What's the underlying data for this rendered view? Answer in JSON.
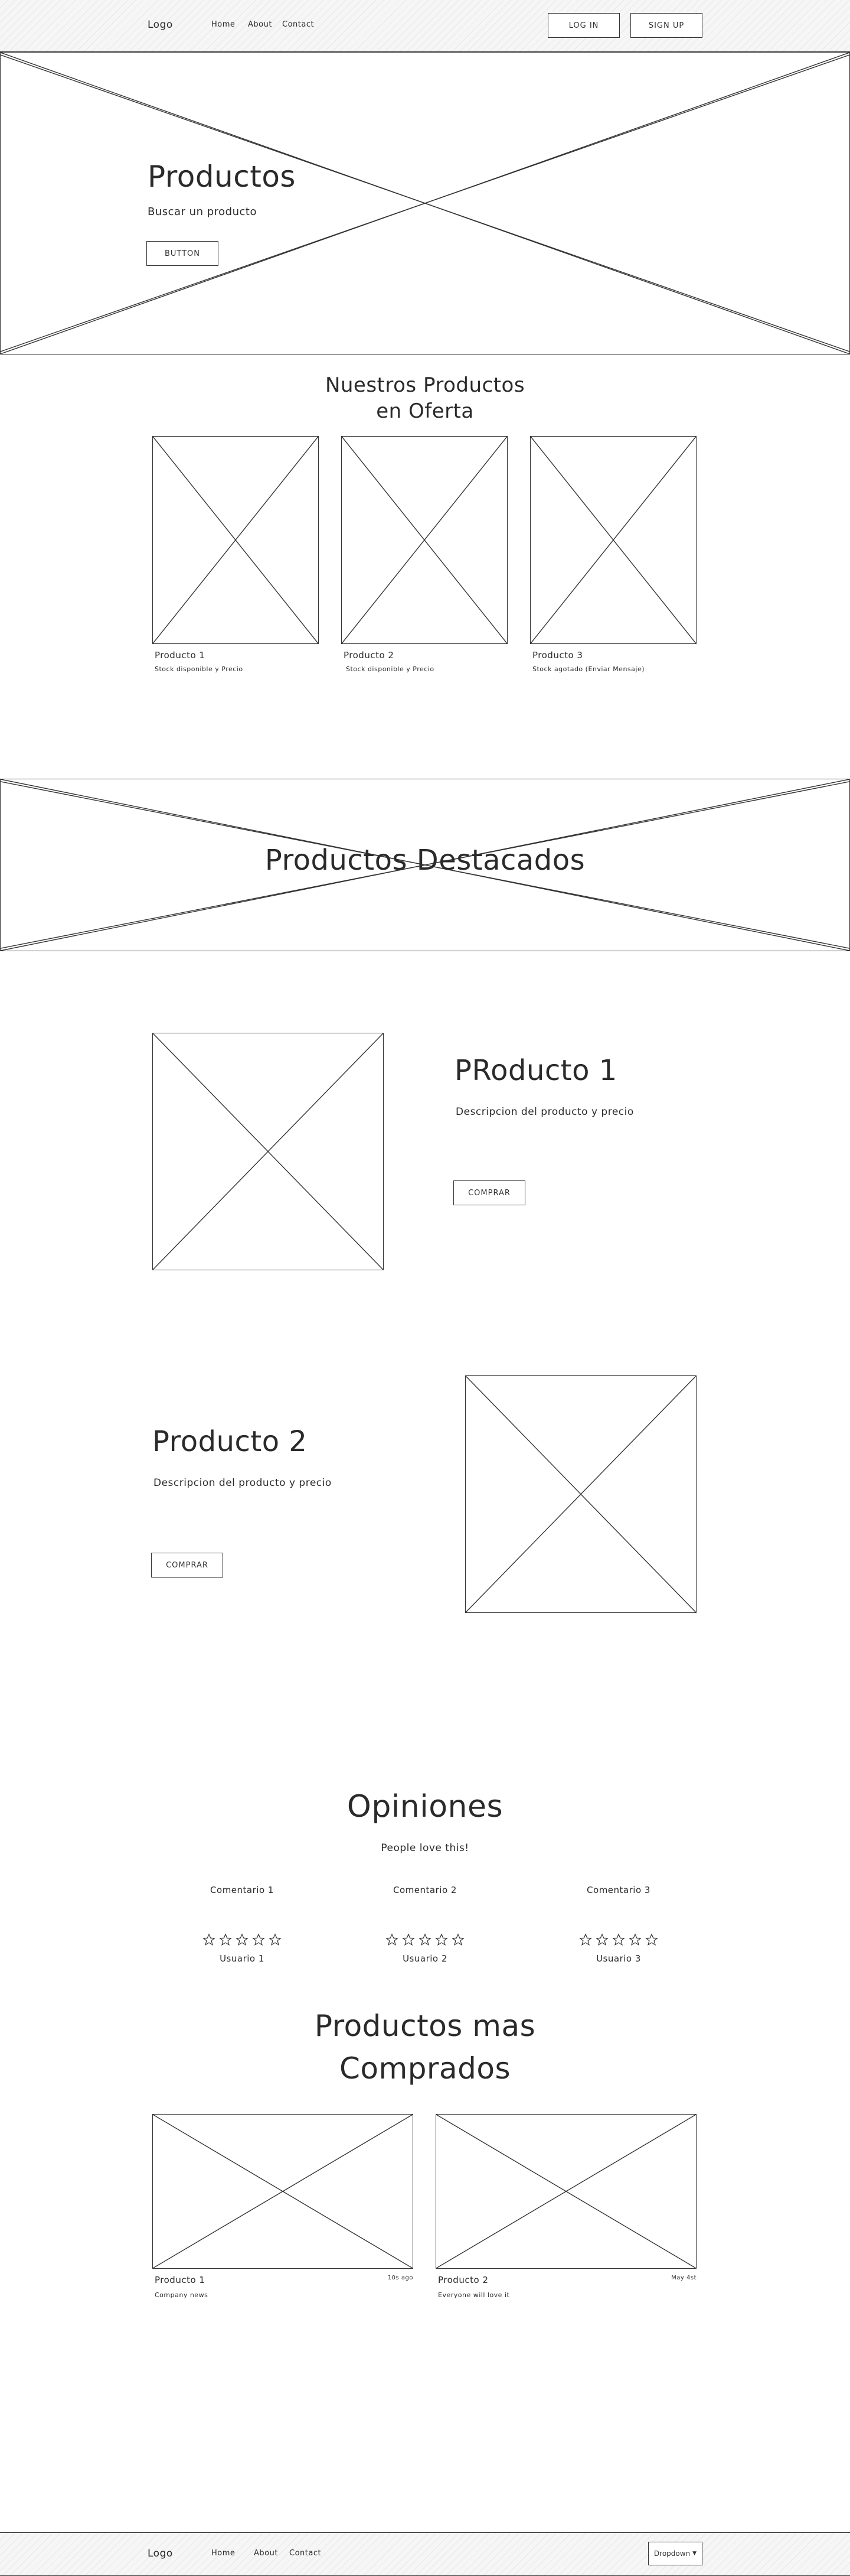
{
  "header": {
    "logo": "Logo",
    "nav": [
      "Home",
      "About",
      "Contact"
    ],
    "login_label": "LOG IN",
    "signup_label": "SIGN UP"
  },
  "hero": {
    "title": "Productos",
    "subtitle": "Buscar un producto",
    "button_label": "BUTTON"
  },
  "offers": {
    "title_line1": "Nuestros Productos",
    "title_line2": "en Oferta",
    "items": [
      {
        "name": "Producto 1",
        "desc": "Stock disponible y Precio"
      },
      {
        "name": "Producto 2",
        "desc": "Stock disponible y Precio"
      },
      {
        "name": "Producto 3",
        "desc": "Stock agotado (Enviar Mensaje)"
      }
    ]
  },
  "featured_banner": {
    "title": "Productos Destacados"
  },
  "featured": [
    {
      "title": "PRoducto 1",
      "desc": "Descripcion del producto y precio",
      "button_label": "COMPRAR"
    },
    {
      "title": "Producto 2",
      "desc": "Descripcion del producto y precio",
      "button_label": "COMPRAR"
    }
  ],
  "opinions": {
    "title": "Opiniones",
    "subtitle": "People love this!",
    "items": [
      {
        "comment": "Comentario 1",
        "user": "Usuario 1"
      },
      {
        "comment": "Comentario 2",
        "user": "Usuario 2"
      },
      {
        "comment": "Comentario 3",
        "user": "Usuario 3"
      }
    ]
  },
  "best_sellers": {
    "title_line1": "Productos mas",
    "title_line2": "Comprados",
    "items": [
      {
        "name": "Producto 1",
        "desc": "Company news",
        "tag": "10s ago"
      },
      {
        "name": "Producto 2",
        "desc": "Everyone will love it",
        "tag": "May 4st"
      }
    ]
  },
  "footer": {
    "logo": "Logo",
    "nav": [
      "Home",
      "About",
      "Contact"
    ],
    "dropdown_label": "Dropdown"
  }
}
